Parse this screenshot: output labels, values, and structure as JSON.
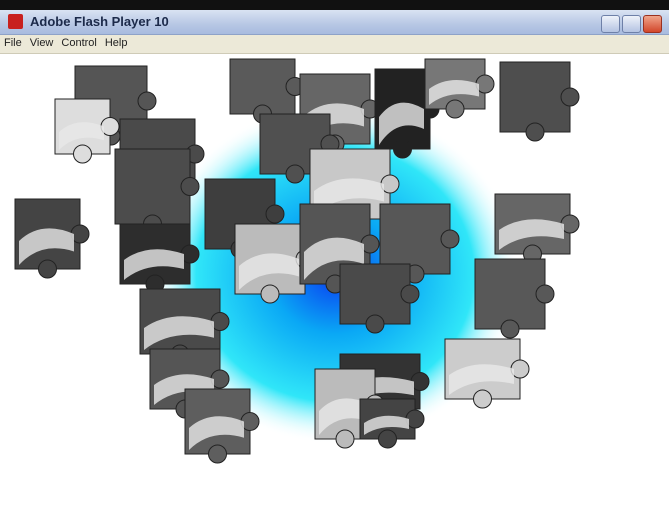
{
  "window": {
    "title": "Adobe Flash Player 10"
  },
  "menu": [
    "File",
    "View",
    "Control",
    "Help"
  ]
}
